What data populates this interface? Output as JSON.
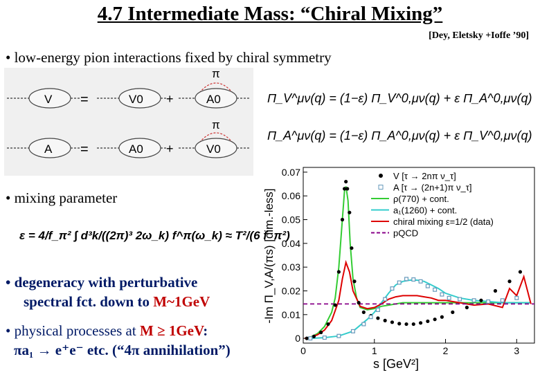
{
  "slide": {
    "title": "4.7 Intermediate Mass: “Chiral Mixing”",
    "citation": "[Dey, Eletsky +Ioffe ’90]",
    "bullet1": "• low-energy pion interactions fixed by chiral symmetry",
    "bullet2": "• mixing parameter",
    "bullet3_line1": "• degeneracy with perturbative",
    "bullet3_line2_a": "spectral fct. down to ",
    "bullet3_line2_b": "M~1GeV",
    "bullet4_line1_a": "• physical processes at ",
    "bullet4_line1_b": "M ≥ 1GeV",
    "bullet4_line1_c": ":",
    "bullet4_line2": "πa₁ → e⁺e⁻  etc.  (“4π annihilation”)"
  },
  "diagram": {
    "row1": {
      "lhs": "V",
      "eq": "=",
      "t1": "V0",
      "plus": "+",
      "t2": "A0",
      "loop": "π"
    },
    "row2": {
      "lhs": "A",
      "eq": "=",
      "t1": "A0",
      "plus": "+",
      "t2": "V0",
      "loop": "π"
    }
  },
  "equations": {
    "eq1": "Π_V^μν(q) = (1−ε) Π_V^0,μν(q) + ε Π_A^0,μν(q)",
    "eq2": "Π_A^μν(q) = (1−ε) Π_A^0,μν(q) + ε Π_V^0,μν(q)",
    "mixing": "ε = 4/f_π² ∫ d³k/((2π)³ 2ω_k) f^π(ω_k) ≈ T²/(6 f_π²)"
  },
  "chart_data": {
    "type": "line",
    "xlabel": "s [GeV²]",
    "ylabel": "-Im Π_V,A/(πs) [dim.-less]",
    "xlim": [
      0,
      3.25
    ],
    "ylim": [
      -0.002,
      0.072
    ],
    "xticks": [
      "0",
      "1",
      "2",
      "3"
    ],
    "yticks": [
      "0",
      "0.01",
      "0.02",
      "0.03",
      "0.04",
      "0.05",
      "0.06",
      "0.07"
    ],
    "legend_position": "top-right",
    "legend": [
      {
        "label": "V [τ → 2nπ ν_τ]",
        "color": "#000000"
      },
      {
        "label": "A [τ → (2n+1)π ν_τ]",
        "color": "#6699bb"
      },
      {
        "label": "ρ(770) + cont.",
        "color": "#33cc33"
      },
      {
        "label": "a₁(1260) + cont.",
        "color": "#33cccc"
      },
      {
        "label": "chiral mixing ε=1/2 (data)",
        "color": "#dd0000"
      },
      {
        "label": "pQCD",
        "color": "#880088"
      }
    ],
    "series": [
      {
        "name": "ρ(770) + cont.",
        "color": "#33cc33",
        "x": [
          0.02,
          0.1,
          0.2,
          0.3,
          0.4,
          0.45,
          0.5,
          0.55,
          0.58,
          0.6,
          0.63,
          0.66,
          0.7,
          0.75,
          0.8,
          0.9,
          1.0,
          1.1,
          1.2,
          1.3,
          1.4,
          1.5,
          1.6,
          1.7,
          1.8,
          1.9,
          2.0,
          2.2,
          2.4,
          2.6,
          2.8,
          3.0,
          3.2
        ],
        "y": [
          0.0,
          0.0005,
          0.002,
          0.005,
          0.011,
          0.017,
          0.03,
          0.05,
          0.062,
          0.064,
          0.058,
          0.04,
          0.025,
          0.017,
          0.013,
          0.012,
          0.0125,
          0.0135,
          0.014,
          0.0145,
          0.015,
          0.015,
          0.015,
          0.015,
          0.015,
          0.015,
          0.015,
          0.015,
          0.015,
          0.015,
          0.015,
          0.015,
          0.015
        ]
      },
      {
        "name": "a₁(1260) + cont.",
        "color": "#33cccc",
        "x": [
          0.1,
          0.3,
          0.5,
          0.7,
          0.9,
          1.0,
          1.1,
          1.2,
          1.3,
          1.4,
          1.5,
          1.6,
          1.7,
          1.8,
          1.9,
          2.0,
          2.2,
          2.4,
          2.6,
          2.8,
          3.0,
          3.2
        ],
        "y": [
          0.0,
          0.0003,
          0.001,
          0.003,
          0.008,
          0.011,
          0.015,
          0.019,
          0.0225,
          0.024,
          0.0245,
          0.0245,
          0.024,
          0.0225,
          0.021,
          0.019,
          0.017,
          0.016,
          0.0155,
          0.015,
          0.015,
          0.015
        ]
      },
      {
        "name": "chiral mixing ε=1/2 (data)",
        "color": "#dd0000",
        "x": [
          0.02,
          0.1,
          0.2,
          0.3,
          0.4,
          0.5,
          0.55,
          0.6,
          0.65,
          0.7,
          0.8,
          0.9,
          1.0,
          1.1,
          1.2,
          1.3,
          1.4,
          1.5,
          1.6,
          1.7,
          1.8,
          1.9,
          2.0,
          2.2,
          2.4,
          2.6,
          2.8,
          2.9,
          3.0,
          3.1,
          3.2
        ],
        "y": [
          0.0,
          0.0004,
          0.0015,
          0.0035,
          0.0075,
          0.016,
          0.025,
          0.032,
          0.028,
          0.02,
          0.0135,
          0.0125,
          0.013,
          0.0145,
          0.0165,
          0.0175,
          0.018,
          0.018,
          0.018,
          0.0175,
          0.017,
          0.016,
          0.016,
          0.015,
          0.014,
          0.0145,
          0.013,
          0.021,
          0.018,
          0.026,
          0.0145
        ]
      },
      {
        "name": "pQCD",
        "color": "#880088",
        "x": [
          0.0,
          3.25
        ],
        "y": [
          0.0145,
          0.0145
        ]
      },
      {
        "name": "V [τ → 2nπ ν_τ]",
        "color": "#000000",
        "x": [
          0.05,
          0.15,
          0.25,
          0.35,
          0.45,
          0.5,
          0.55,
          0.58,
          0.6,
          0.62,
          0.65,
          0.68,
          0.72,
          0.78,
          0.85,
          0.95,
          1.05,
          1.15,
          1.25,
          1.35,
          1.45,
          1.55,
          1.65,
          1.75,
          1.85,
          1.95,
          2.1,
          2.3,
          2.5,
          2.7,
          2.9,
          3.05
        ],
        "y": [
          0.0,
          0.0008,
          0.0025,
          0.006,
          0.014,
          0.028,
          0.05,
          0.063,
          0.066,
          0.063,
          0.053,
          0.038,
          0.024,
          0.015,
          0.011,
          0.0095,
          0.0085,
          0.0075,
          0.0068,
          0.0062,
          0.006,
          0.006,
          0.0065,
          0.0072,
          0.008,
          0.009,
          0.011,
          0.013,
          0.016,
          0.02,
          0.024,
          0.028
        ]
      },
      {
        "name": "A [τ → (2n+1)π ν_τ]",
        "color": "#6699bb",
        "x": [
          0.1,
          0.3,
          0.5,
          0.7,
          0.85,
          0.95,
          1.05,
          1.15,
          1.25,
          1.35,
          1.45,
          1.55,
          1.65,
          1.75,
          1.85,
          1.95,
          2.05,
          2.2,
          2.4,
          2.6,
          2.8,
          3.0
        ],
        "y": [
          0.0,
          0.0003,
          0.001,
          0.003,
          0.006,
          0.009,
          0.012,
          0.0165,
          0.021,
          0.0235,
          0.025,
          0.0248,
          0.024,
          0.022,
          0.0205,
          0.0185,
          0.017,
          0.0165,
          0.016,
          0.0155,
          0.016,
          0.017
        ]
      }
    ]
  }
}
